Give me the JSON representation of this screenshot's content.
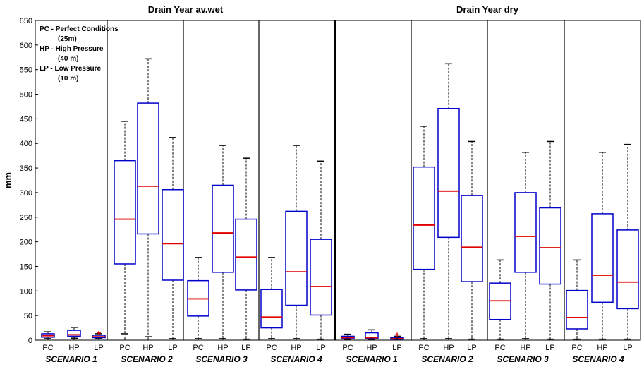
{
  "chart_data": {
    "type": "box",
    "ylabel": "mm",
    "ylim": [
      0,
      650
    ],
    "yticks": [
      0,
      50,
      100,
      150,
      200,
      250,
      300,
      350,
      400,
      450,
      500,
      550,
      600,
      650
    ],
    "categories": [
      "PC",
      "HP",
      "LP"
    ],
    "legend": [
      {
        "line1": "PC - Perfect Conditions",
        "line2": "(25m)"
      },
      {
        "line1": "HP - High Pressure",
        "line2": "(40 m)"
      },
      {
        "line1": "LP - Low Pressure",
        "line2": "(10 m)"
      }
    ],
    "panels": [
      {
        "title": "Drain Year av.wet",
        "scenarios": [
          {
            "label": "SCENARIO 1",
            "boxes": [
              {
                "cat": "PC",
                "min": 3,
                "q1": 6,
                "median": 9,
                "q3": 13,
                "max": 17
              },
              {
                "cat": "HP",
                "min": 4,
                "q1": 8,
                "median": 11,
                "q3": 20,
                "max": 26
              },
              {
                "cat": "LP",
                "min": 3,
                "q1": 5,
                "median": 7,
                "q3": 10,
                "max": 13,
                "outliers": [
                  14
                ]
              }
            ]
          },
          {
            "label": "SCENARIO 2",
            "boxes": [
              {
                "cat": "PC",
                "min": 13,
                "q1": 155,
                "median": 246,
                "q3": 365,
                "max": 445
              },
              {
                "cat": "HP",
                "min": 7,
                "q1": 216,
                "median": 313,
                "q3": 482,
                "max": 572
              },
              {
                "cat": "LP",
                "min": 3,
                "q1": 122,
                "median": 196,
                "q3": 306,
                "max": 412
              }
            ]
          },
          {
            "label": "SCENARIO 3",
            "boxes": [
              {
                "cat": "PC",
                "min": 3,
                "q1": 49,
                "median": 84,
                "q3": 121,
                "max": 168
              },
              {
                "cat": "HP",
                "min": 3,
                "q1": 138,
                "median": 218,
                "q3": 315,
                "max": 396
              },
              {
                "cat": "LP",
                "min": 2,
                "q1": 102,
                "median": 169,
                "q3": 246,
                "max": 370
              }
            ]
          },
          {
            "label": "SCENARIO 4",
            "boxes": [
              {
                "cat": "PC",
                "min": 3,
                "q1": 25,
                "median": 47,
                "q3": 103,
                "max": 168
              },
              {
                "cat": "HP",
                "min": 3,
                "q1": 71,
                "median": 139,
                "q3": 262,
                "max": 396
              },
              {
                "cat": "LP",
                "min": 2,
                "q1": 51,
                "median": 109,
                "q3": 205,
                "max": 364
              }
            ]
          }
        ]
      },
      {
        "title": "Drain Year dry",
        "scenarios": [
          {
            "label": "SCENARIO 1",
            "boxes": [
              {
                "cat": "PC",
                "min": 1,
                "q1": 3,
                "median": 5,
                "q3": 8,
                "max": 12
              },
              {
                "cat": "HP",
                "min": 1,
                "q1": 3,
                "median": 5,
                "q3": 15,
                "max": 21
              },
              {
                "cat": "LP",
                "min": 1,
                "q1": 2,
                "median": 3,
                "q3": 5,
                "max": 8,
                "outliers": [
                  11
                ]
              }
            ]
          },
          {
            "label": "SCENARIO 2",
            "boxes": [
              {
                "cat": "PC",
                "min": 3,
                "q1": 144,
                "median": 234,
                "q3": 352,
                "max": 435
              },
              {
                "cat": "HP",
                "min": 3,
                "q1": 209,
                "median": 303,
                "q3": 471,
                "max": 562
              },
              {
                "cat": "LP",
                "min": 2,
                "q1": 119,
                "median": 189,
                "q3": 294,
                "max": 404
              }
            ]
          },
          {
            "label": "SCENARIO 3",
            "boxes": [
              {
                "cat": "PC",
                "min": 2,
                "q1": 42,
                "median": 80,
                "q3": 116,
                "max": 163
              },
              {
                "cat": "HP",
                "min": 3,
                "q1": 138,
                "median": 211,
                "q3": 300,
                "max": 382
              },
              {
                "cat": "LP",
                "min": 2,
                "q1": 114,
                "median": 188,
                "q3": 269,
                "max": 404
              }
            ]
          },
          {
            "label": "SCENARIO 4",
            "boxes": [
              {
                "cat": "PC",
                "min": 2,
                "q1": 23,
                "median": 46,
                "q3": 101,
                "max": 163
              },
              {
                "cat": "HP",
                "min": 2,
                "q1": 77,
                "median": 132,
                "q3": 257,
                "max": 382
              },
              {
                "cat": "LP",
                "min": 2,
                "q1": 64,
                "median": 118,
                "q3": 224,
                "max": 398
              }
            ]
          }
        ]
      }
    ],
    "colors": {
      "box": "#0000cc",
      "median": "#e00000",
      "whisker": "#000000",
      "outlier": "#e00000"
    }
  }
}
